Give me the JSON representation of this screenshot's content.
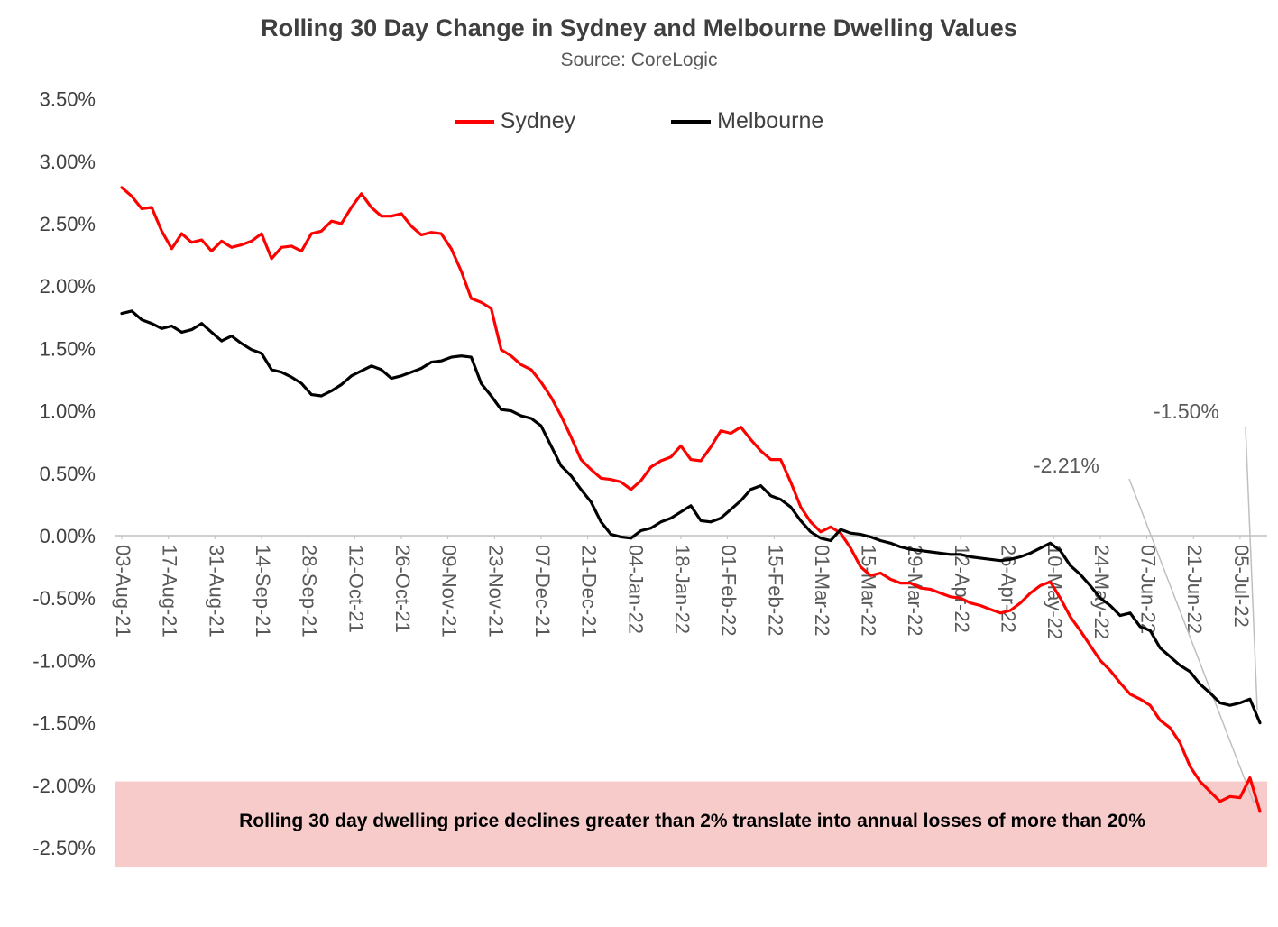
{
  "chart_data": {
    "type": "line",
    "title": "Rolling 30 Day Change in Sydney and Melbourne Dwelling Values",
    "subtitle": "Source: CoreLogic",
    "xlabel": "",
    "ylabel": "",
    "ylim": [
      -2.5,
      3.5
    ],
    "y_tick_step": 0.5,
    "y_tick_format": "0.00%",
    "x_tick_interval_days": 14,
    "x_tick_labels": [
      "03-Aug-21",
      "17-Aug-21",
      "31-Aug-21",
      "14-Sep-21",
      "28-Sep-21",
      "12-Oct-21",
      "26-Oct-21",
      "09-Nov-21",
      "23-Nov-21",
      "07-Dec-21",
      "21-Dec-21",
      "04-Jan-22",
      "18-Jan-22",
      "01-Feb-22",
      "15-Feb-22",
      "01-Mar-22",
      "15-Mar-22",
      "29-Mar-22",
      "12-Apr-22",
      "26-Apr-22",
      "10-May-22",
      "24-May-22",
      "07-Jun-22",
      "21-Jun-22",
      "05-Jul-22"
    ],
    "legend_position": "top-center",
    "grid": "zero-line-only",
    "axis_color": "#BFBFBF",
    "annotations": {
      "sydney_end": {
        "label": "-2.21%",
        "value": -2.21
      },
      "melbourne_end": {
        "label": "-1.50%",
        "value": -1.5
      }
    },
    "band": {
      "label": "Rolling 30 day dwelling price declines greater than 2% translate into annual losses of more than 20%",
      "color": "#F8CBCB",
      "value_from": -1.97,
      "value_to": -2.66
    },
    "series": [
      {
        "name": "Sydney",
        "color": "#FF0000",
        "step_days": 3,
        "start": "03-Aug-21",
        "values": [
          2.79,
          2.72,
          2.62,
          2.63,
          2.44,
          2.3,
          2.42,
          2.35,
          2.37,
          2.28,
          2.36,
          2.31,
          2.33,
          2.36,
          2.42,
          2.22,
          2.31,
          2.32,
          2.28,
          2.42,
          2.44,
          2.52,
          2.5,
          2.63,
          2.74,
          2.63,
          2.56,
          2.56,
          2.58,
          2.48,
          2.41,
          2.43,
          2.42,
          2.3,
          2.12,
          1.9,
          1.87,
          1.82,
          1.49,
          1.44,
          1.37,
          1.33,
          1.23,
          1.11,
          0.96,
          0.79,
          0.61,
          0.53,
          0.46,
          0.45,
          0.43,
          0.37,
          0.44,
          0.55,
          0.6,
          0.63,
          0.72,
          0.61,
          0.6,
          0.71,
          0.84,
          0.82,
          0.87,
          0.77,
          0.68,
          0.61,
          0.61,
          0.43,
          0.23,
          0.11,
          0.03,
          0.07,
          0.02,
          -0.1,
          -0.25,
          -0.32,
          -0.3,
          -0.35,
          -0.38,
          -0.38,
          -0.42,
          -0.43,
          -0.46,
          -0.49,
          -0.5,
          -0.54,
          -0.56,
          -0.59,
          -0.62,
          -0.6,
          -0.54,
          -0.46,
          -0.4,
          -0.37,
          -0.5,
          -0.65,
          -0.76,
          -0.88,
          -1.0,
          -1.08,
          -1.18,
          -1.27,
          -1.31,
          -1.36,
          -1.48,
          -1.54,
          -1.66,
          -1.85,
          -1.97,
          -2.05,
          -2.13,
          -2.09,
          -2.1,
          -1.94,
          -2.21
        ]
      },
      {
        "name": "Melbourne",
        "color": "#000000",
        "step_days": 3,
        "start": "03-Aug-21",
        "values": [
          1.78,
          1.8,
          1.73,
          1.7,
          1.66,
          1.68,
          1.63,
          1.65,
          1.7,
          1.63,
          1.56,
          1.6,
          1.54,
          1.49,
          1.46,
          1.33,
          1.31,
          1.27,
          1.22,
          1.13,
          1.12,
          1.16,
          1.21,
          1.28,
          1.32,
          1.36,
          1.33,
          1.26,
          1.28,
          1.31,
          1.34,
          1.39,
          1.4,
          1.43,
          1.44,
          1.43,
          1.22,
          1.12,
          1.01,
          1.0,
          0.96,
          0.94,
          0.88,
          0.72,
          0.56,
          0.48,
          0.37,
          0.27,
          0.11,
          0.01,
          -0.01,
          -0.02,
          0.04,
          0.06,
          0.11,
          0.14,
          0.19,
          0.24,
          0.12,
          0.11,
          0.14,
          0.21,
          0.28,
          0.37,
          0.4,
          0.32,
          0.29,
          0.23,
          0.12,
          0.03,
          -0.02,
          -0.04,
          0.05,
          0.02,
          0.01,
          -0.01,
          -0.04,
          -0.06,
          -0.09,
          -0.11,
          -0.12,
          -0.13,
          -0.14,
          -0.15,
          -0.15,
          -0.17,
          -0.18,
          -0.19,
          -0.2,
          -0.19,
          -0.17,
          -0.14,
          -0.1,
          -0.06,
          -0.12,
          -0.24,
          -0.31,
          -0.4,
          -0.5,
          -0.56,
          -0.64,
          -0.62,
          -0.73,
          -0.76,
          -0.9,
          -0.97,
          -1.04,
          -1.09,
          -1.19,
          -1.26,
          -1.34,
          -1.36,
          -1.34,
          -1.31,
          -1.5
        ]
      }
    ]
  }
}
